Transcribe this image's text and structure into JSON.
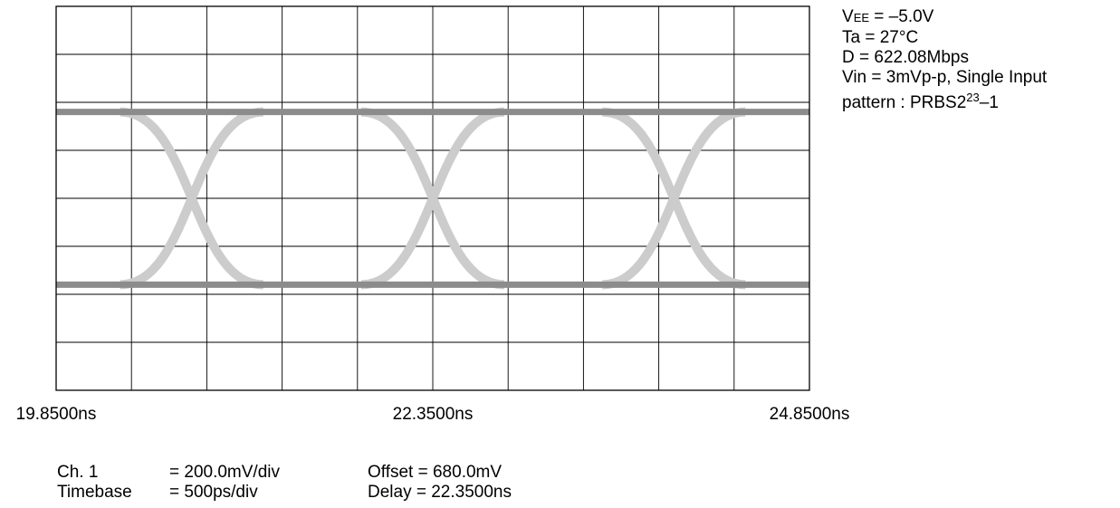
{
  "chart_data": {
    "type": "line",
    "title": "",
    "plot": "eye diagram",
    "xlabel": "",
    "ylabel": "",
    "x_unit": "ns",
    "xlim": [
      19.85,
      24.85
    ],
    "x_divisions": 10,
    "y_divisions": 8,
    "grid": true,
    "x_tick_labels": [
      "19.8500ns",
      "22.3500ns",
      "24.8500ns"
    ],
    "x_tick_values": [
      19.85,
      22.35,
      24.85
    ],
    "eye_levels_div": {
      "high": 5.8,
      "low": 2.2
    },
    "eye_crossings_ns": [
      20.75,
      22.35,
      23.95
    ],
    "eye_transition_width_ns": 0.95,
    "colors": {
      "level_trace": "#8c8c8c",
      "transition_trace": "#cccccc",
      "grid": "#000000"
    }
  },
  "conditions": {
    "vee_prefix": "V",
    "vee_sub": "EE",
    "vee_rest": " = –5.0V",
    "ta": "Ta = 27°C",
    "d": "D = 622.08Mbps",
    "vin": "Vin = 3mVp-p, Single Input",
    "pattern_prefix": "pattern : PRBS2",
    "pattern_exp": "23",
    "pattern_suffix": "–1"
  },
  "settings": {
    "ch1_label": "Ch. 1",
    "ch1_value": "= 200.0mV/div",
    "timebase_label": "Timebase",
    "timebase_value": "= 500ps/div",
    "offset": "Offset = 680.0mV",
    "delay": "Delay = 22.3500ns"
  }
}
